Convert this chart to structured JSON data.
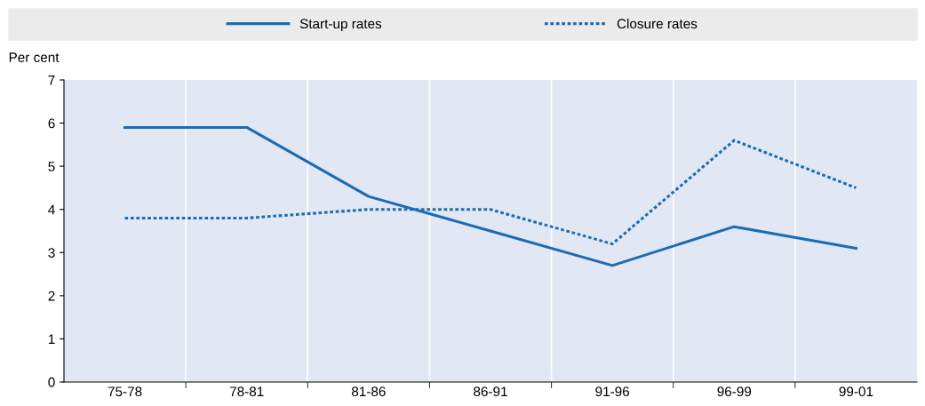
{
  "chart_data": {
    "type": "line",
    "ylabel": "Per cent",
    "categories": [
      "75-78",
      "78-81",
      "81-86",
      "86-91",
      "91-96",
      "96-99",
      "99-01"
    ],
    "series": [
      {
        "name": "Start-up rates",
        "color": "#1a6cb5",
        "line_style": "solid",
        "values": [
          5.9,
          5.9,
          4.3,
          3.5,
          2.7,
          3.6,
          3.1
        ]
      },
      {
        "name": "Closure rates",
        "color": "#1a6cb5",
        "line_style": "dotted",
        "values": [
          3.8,
          3.8,
          4.0,
          4.0,
          3.2,
          5.6,
          4.5
        ]
      }
    ],
    "ylim": [
      0,
      7
    ],
    "yticks": [
      0,
      1,
      2,
      3,
      4,
      5,
      6,
      7
    ],
    "grid": "x",
    "legend": "top",
    "marker": "none"
  }
}
